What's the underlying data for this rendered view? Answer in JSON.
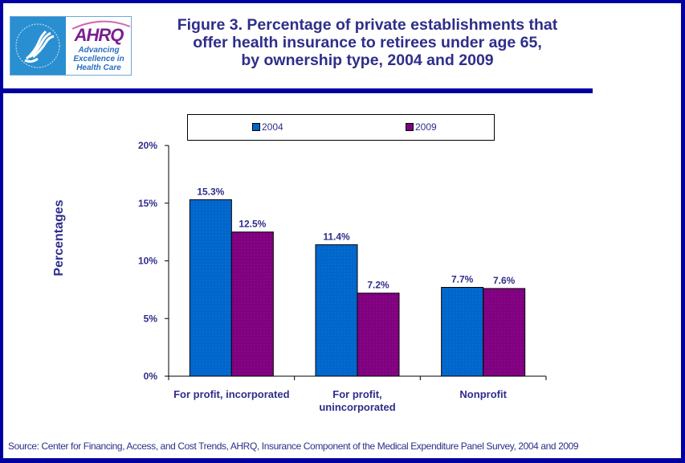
{
  "header": {
    "logo_hhs_alt": "HHS eagle seal",
    "logo_ahrq_word": "AHRQ",
    "logo_ahrq_tagline": "Advancing Excellence in Health Care",
    "title_lines": [
      "Figure 3. Percentage of private establishments that",
      "offer health insurance to retirees under age 65,",
      "by ownership type, 2004 and 2009"
    ]
  },
  "colors": {
    "frame": "#0000A0",
    "text": "#2E2E8A",
    "series_2004": "#0066CC",
    "series_2009": "#800080"
  },
  "footer": {
    "source": "Source: Center for Financing, Access, and Cost Trends, AHRQ, Insurance Component of the Medical Expenditure Panel Survey, 2004 and 2009"
  },
  "chart_data": {
    "type": "bar",
    "title": "Figure 3. Percentage of private establishments that offer health insurance to retirees under age 65, by ownership type, 2004 and 2009",
    "xlabel": "",
    "ylabel": "Percentages",
    "ylim": [
      0,
      20
    ],
    "yticks": [
      0,
      5,
      10,
      15,
      20
    ],
    "ytick_labels": [
      "0%",
      "5%",
      "10%",
      "15%",
      "20%"
    ],
    "grid": false,
    "legend_position": "top",
    "categories": [
      "For profit, incorporated",
      "For profit,\nunincorporated",
      "Nonprofit"
    ],
    "category_label_lines": [
      [
        "For profit, incorporated"
      ],
      [
        "For profit,",
        "unincorporated"
      ],
      [
        "Nonprofit"
      ]
    ],
    "series": [
      {
        "name": "2004",
        "color": "#0066CC",
        "values": [
          15.3,
          11.4,
          7.7
        ],
        "labels": [
          "15.3%",
          "11.4%",
          "7.7%"
        ]
      },
      {
        "name": "2009",
        "color": "#800080",
        "values": [
          12.5,
          7.2,
          7.6
        ],
        "labels": [
          "12.5%",
          "7.2%",
          "7.6%"
        ]
      }
    ]
  }
}
